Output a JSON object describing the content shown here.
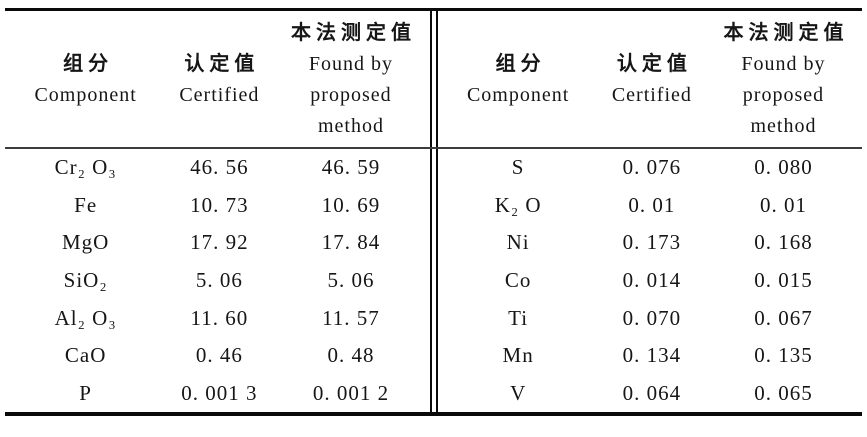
{
  "page": {
    "background": "#ffffff",
    "text_color": "#161616",
    "rule_color": "#0a0a0a"
  },
  "header": {
    "component_zh": "组分",
    "component_en": "Component",
    "certified_zh": "认定值",
    "certified_en": "Certified",
    "found_zh": "本法测定值",
    "found_en_line1": "Found by",
    "found_en_line2": "proposed",
    "found_en_line3": "method"
  },
  "left_table": {
    "rows": [
      {
        "component": "Cr₂ O₃",
        "certified": "46. 56",
        "found": "46. 59"
      },
      {
        "component": "Fe",
        "certified": "10. 73",
        "found": "10. 69"
      },
      {
        "component": "MgO",
        "certified": "17. 92",
        "found": "17. 84"
      },
      {
        "component": "SiO₂",
        "certified": "5. 06",
        "found": "5. 06"
      },
      {
        "component": "Al₂ O₃",
        "certified": "11. 60",
        "found": "11. 57"
      },
      {
        "component": "CaO",
        "certified": "0. 46",
        "found": "0. 48"
      },
      {
        "component": "P",
        "certified": "0. 001 3",
        "found": "0. 001 2"
      }
    ]
  },
  "right_table": {
    "rows": [
      {
        "component": "S",
        "certified": "0. 076",
        "found": "0. 080"
      },
      {
        "component": "K₂ O",
        "certified": "0. 01",
        "found": "0. 01"
      },
      {
        "component": "Ni",
        "certified": "0. 173",
        "found": "0. 168"
      },
      {
        "component": "Co",
        "certified": "0. 014",
        "found": "0. 015"
      },
      {
        "component": "Ti",
        "certified": "0. 070",
        "found": "0. 067"
      },
      {
        "component": "Mn",
        "certified": "0. 134",
        "found": "0. 135"
      },
      {
        "component": "V",
        "certified": "0. 064",
        "found": "0. 065"
      }
    ]
  }
}
